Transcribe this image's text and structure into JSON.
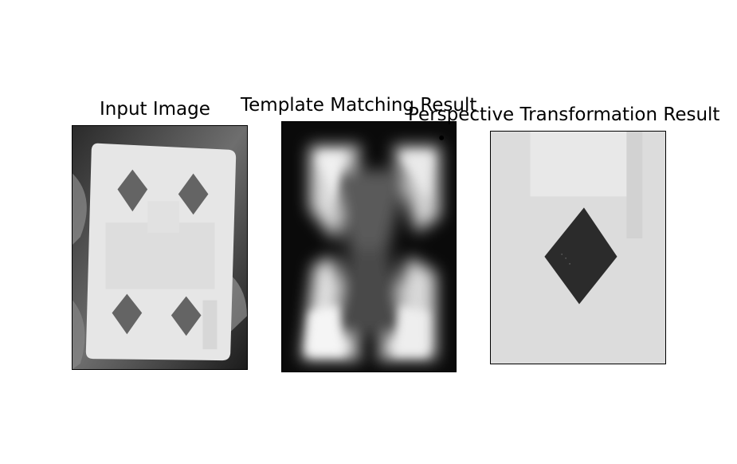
{
  "figure": {
    "panels": [
      {
        "title": "Input Image"
      },
      {
        "title": "Template Matching Result"
      },
      {
        "title": "Perspective Transformation Result"
      }
    ]
  }
}
